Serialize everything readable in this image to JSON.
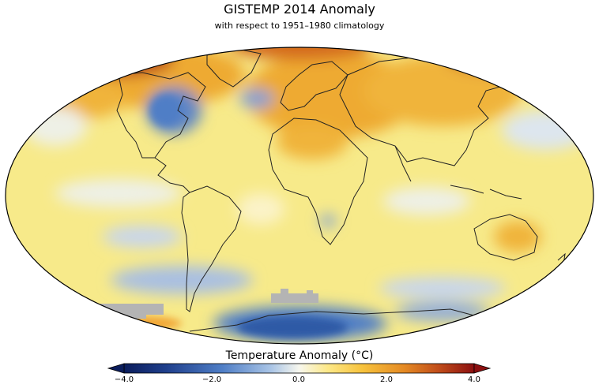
{
  "title": "GISTEMP 2014 Anomaly",
  "subtitle": "with respect to 1951–1980 climatology",
  "colorbar": {
    "label": "Temperature Anomaly (°C)",
    "ticks": [
      "−4.0",
      "−2.0",
      "0.0",
      "2.0",
      "4.0"
    ],
    "min": -4.0,
    "max": 4.0,
    "colors": [
      "#0b1d5c",
      "#2a4d9c",
      "#6f97d2",
      "#d8e6f3",
      "#fdf7c2",
      "#fce27a",
      "#f7b63a",
      "#e07b1e",
      "#b8401a",
      "#8b0f10"
    ]
  },
  "map": {
    "projection": "Robinson",
    "ocean_base_color": "#f7ea8a",
    "missing_data_color": "#b4b4b4"
  }
}
